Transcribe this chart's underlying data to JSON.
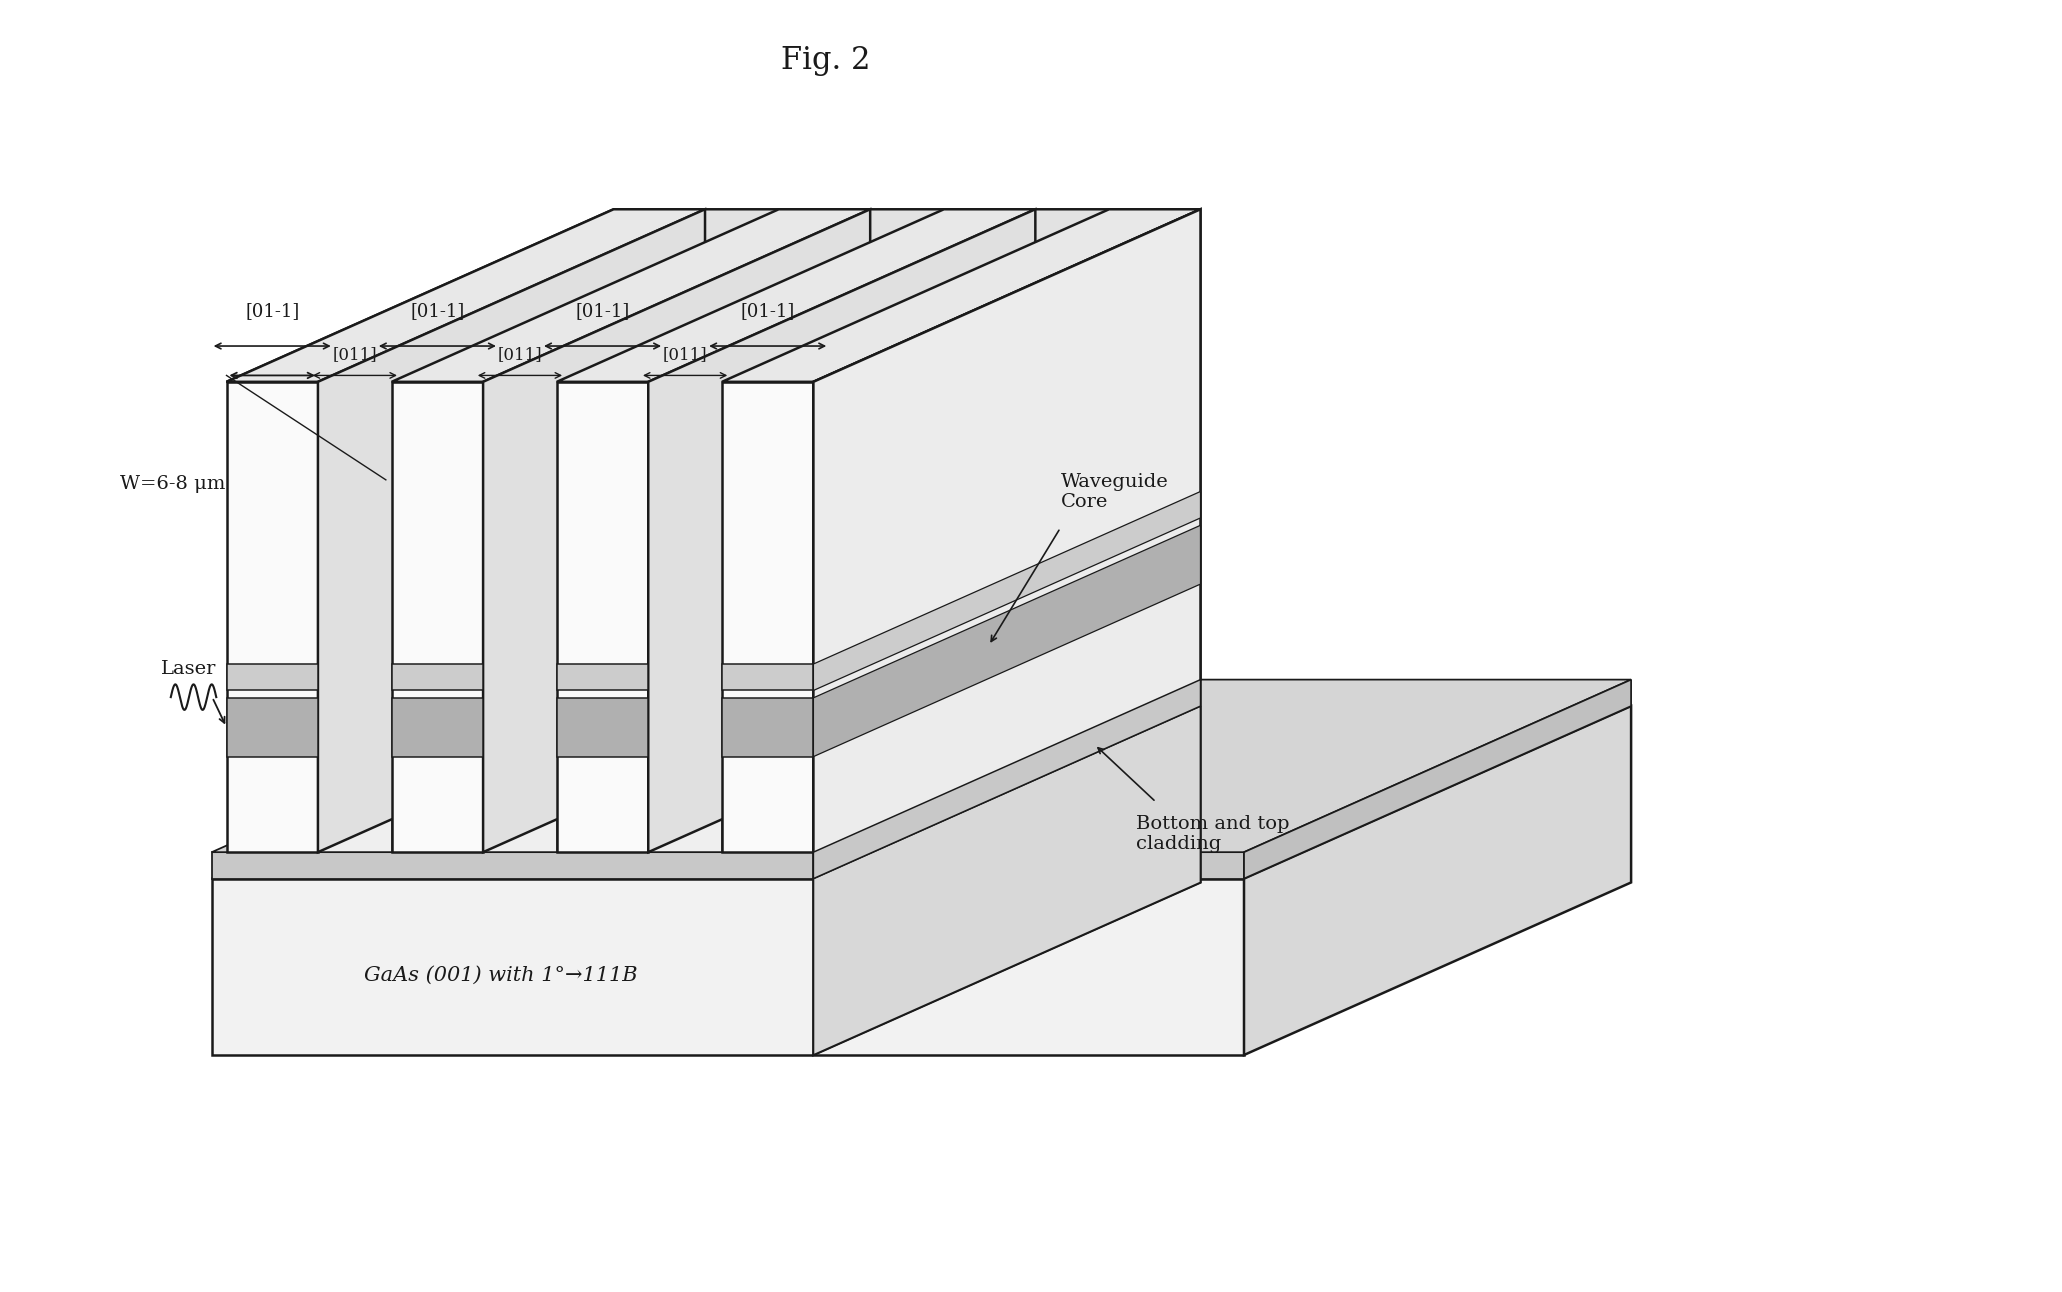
{
  "title": "Fig. 2",
  "title_fontsize": 22,
  "fig_width": 20.62,
  "fig_height": 12.92,
  "background_color": "#ffffff",
  "line_color": "#1a1a1a",
  "line_width": 1.8,
  "substrate_label": "GaAs (001) with 1°→111B",
  "substrate_label_fontsize": 15,
  "w_label": "W=6-8 μm",
  "laser_label": "Laser",
  "waveguide_core_label": "Waveguide\nCore",
  "bottom_top_label": "Bottom and top\ncladding",
  "annotation_fontsize": 13,
  "label_fontsize": 14
}
